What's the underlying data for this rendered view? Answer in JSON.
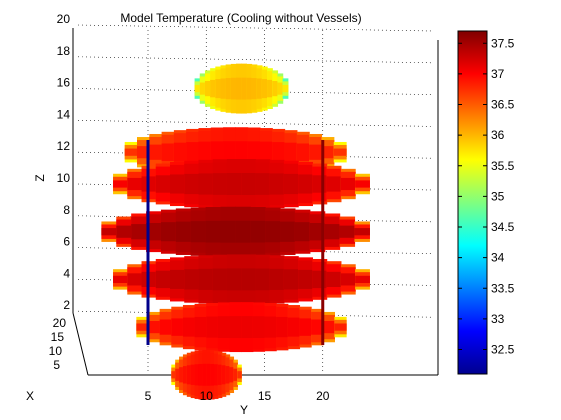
{
  "chart_data": {
    "type": "heatmap",
    "title": "Model Temperature (Cooling without Vessels)",
    "xlabel": "Y",
    "ylabel": "Z",
    "depth_label": "X",
    "z_ticks": [
      "2",
      "4",
      "6",
      "8",
      "10",
      "12",
      "14",
      "16",
      "18",
      "20"
    ],
    "y_ticks": [
      "5",
      "10",
      "15",
      "20"
    ],
    "x_ticks": [
      "5",
      "10",
      "15",
      "20"
    ],
    "zlim": [
      0,
      20
    ],
    "ylim": [
      1,
      24
    ],
    "colorbar": {
      "min": 32.1,
      "max": 37.7,
      "ticks": [
        "32.5",
        "33",
        "33.5",
        "34",
        "34.5",
        "35",
        "35.5",
        "36",
        "36.5",
        "37",
        "37.5"
      ],
      "colormap": "jet"
    },
    "layers": [
      {
        "z": 16,
        "y_start": 9,
        "y_end": 17,
        "temp": 35.9
      },
      {
        "z": 12,
        "y_start": 3,
        "y_end": 22,
        "temp": 36.9
      },
      {
        "z": 10,
        "y_start": 2,
        "y_end": 24,
        "temp": 37.2
      },
      {
        "z": 7,
        "y_start": 1,
        "y_end": 24,
        "temp": 37.5
      },
      {
        "z": 4,
        "y_start": 2,
        "y_end": 24,
        "temp": 37.3
      },
      {
        "z": 1,
        "y_start": 4,
        "y_end": 22,
        "temp": 37.0
      },
      {
        "z": -2,
        "y_start": 7,
        "y_end": 13,
        "temp": 36.9
      }
    ],
    "rods": [
      {
        "y": 5,
        "color": "#00008b"
      },
      {
        "y": 20,
        "color": "#8b0000"
      }
    ],
    "grid": true
  }
}
